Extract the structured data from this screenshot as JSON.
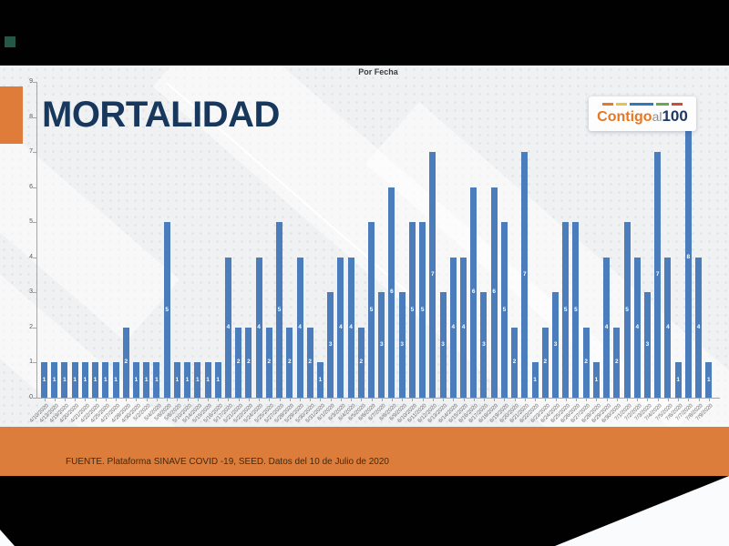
{
  "slide": {
    "title": "MORTALIDAD",
    "source_note": "FUENTE. Plataforma SINAVE COVID -19, SEED. Datos del 10 de Julio de 2020"
  },
  "logo": {
    "part_contigo": "Contigo",
    "part_al": "al",
    "part_100": "100",
    "dash_colors": [
      "#e8762d",
      "#e6c349",
      "#2e79b9",
      "#6aa84f",
      "#cf4c35"
    ]
  },
  "colors": {
    "accent_orange": "#dd7d3b",
    "left_accent_orange": "#e07c3a",
    "bar_blue": "#4b7cbb",
    "title_navy": "#17375c",
    "frame_black": "#010101",
    "teal_accent": "#235848",
    "logo_orange": "#e87722",
    "logo_gray": "#8a9097",
    "logo_navy": "#1f3864"
  },
  "chart_data": {
    "type": "bar",
    "title": "Por Fecha",
    "xlabel": "",
    "ylabel": "",
    "ylim": [
      0,
      9
    ],
    "yticks": [
      0,
      1,
      2,
      3,
      4,
      5,
      6,
      7,
      8,
      9
    ],
    "grid": false,
    "legend": false,
    "data_labels": true,
    "bar_color": "#4b7cbb",
    "categories": [
      "4/10/2020",
      "4/13/2020",
      "4/19/2020",
      "4/20/2020",
      "4/21/2020",
      "4/22/2020",
      "4/25/2020",
      "4/27/2020",
      "4/28/2020",
      "4/30/2020",
      "5/2/2020",
      "5/4/2020",
      "5/6/2020",
      "5/8/2020",
      "5/10/2020",
      "5/14/2020",
      "5/15/2020",
      "5/16/2020",
      "5/17/2020",
      "5/21/2020",
      "5/22/2020",
      "5/24/2020",
      "5/25/2020",
      "5/27/2020",
      "5/28/2020",
      "5/29/2020",
      "5/30/2020",
      "5/31/2020",
      "6/1/2020",
      "6/3/2020",
      "6/4/2020",
      "6/5/2020",
      "6/6/2020",
      "6/7/2020",
      "6/8/2020",
      "6/9/2020",
      "6/10/2020",
      "6/11/2020",
      "6/12/2020",
      "6/13/2020",
      "6/14/2020",
      "6/15/2020",
      "6/16/2020",
      "6/17/2020",
      "6/18/2020",
      "6/19/2020",
      "6/20/2020",
      "6/21/2020",
      "6/22/2020",
      "6/23/2020",
      "6/24/2020",
      "6/25/2020",
      "6/26/2020",
      "6/27/2020",
      "6/28/2020",
      "6/29/2020",
      "6/30/2020",
      "7/1/2020",
      "7/2/2020",
      "7/3/2020",
      "7/4/2020",
      "7/5/2020",
      "7/6/2020",
      "7/7/2020",
      "7/8/2020",
      "7/9/2020"
    ],
    "values": [
      1,
      1,
      1,
      1,
      1,
      1,
      1,
      1,
      2,
      1,
      1,
      1,
      5,
      1,
      1,
      1,
      1,
      1,
      4,
      2,
      2,
      4,
      2,
      5,
      2,
      4,
      2,
      1,
      3,
      4,
      4,
      2,
      5,
      3,
      6,
      3,
      5,
      5,
      7,
      3,
      4,
      4,
      6,
      3,
      6,
      5,
      2,
      7,
      1,
      2,
      3,
      5,
      5,
      2,
      1,
      4,
      2,
      5,
      4,
      3,
      7,
      4,
      1,
      8,
      4,
      1
    ]
  }
}
